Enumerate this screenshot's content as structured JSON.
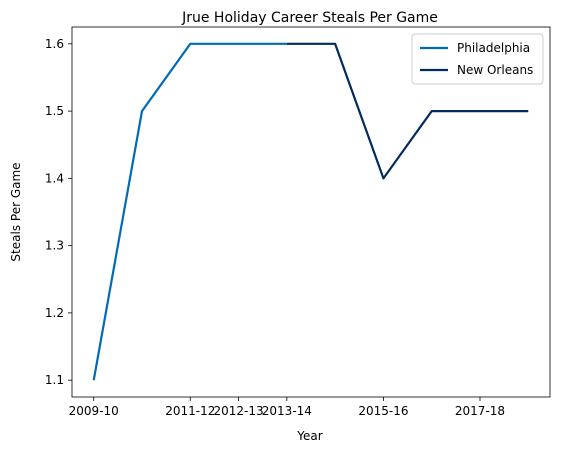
{
  "chart_data": {
    "type": "line",
    "title": "Jrue Holiday Career Steals Per Game",
    "xlabel": "Year",
    "ylabel": "Steals Per Game",
    "x_categories": [
      "2009-10",
      "2010-11",
      "2011-12",
      "2012-13",
      "2013-14",
      "2014-15",
      "2015-16",
      "2016-17",
      "2017-18",
      "2018-19"
    ],
    "x_tick_labels": [
      "2009-10",
      "2011-12",
      "2012-13",
      "2013-14",
      "2015-16",
      "2017-18"
    ],
    "y_ticks": [
      1.1,
      1.2,
      1.3,
      1.4,
      1.5,
      1.6
    ],
    "ylim": [
      1.075,
      1.625
    ],
    "grid": false,
    "legend_position": "top-right",
    "series": [
      {
        "name": "Philadelphia",
        "color": "#006bb6",
        "x": [
          "2009-10",
          "2010-11",
          "2011-12",
          "2012-13",
          "2013-14"
        ],
        "y": [
          1.1,
          1.5,
          1.6,
          1.6,
          1.6
        ]
      },
      {
        "name": "New Orleans",
        "color": "#002b5c",
        "x": [
          "2013-14",
          "2014-15",
          "2015-16",
          "2016-17",
          "2017-18",
          "2018-19"
        ],
        "y": [
          1.6,
          1.6,
          1.4,
          1.5,
          1.5,
          1.5
        ]
      }
    ]
  }
}
